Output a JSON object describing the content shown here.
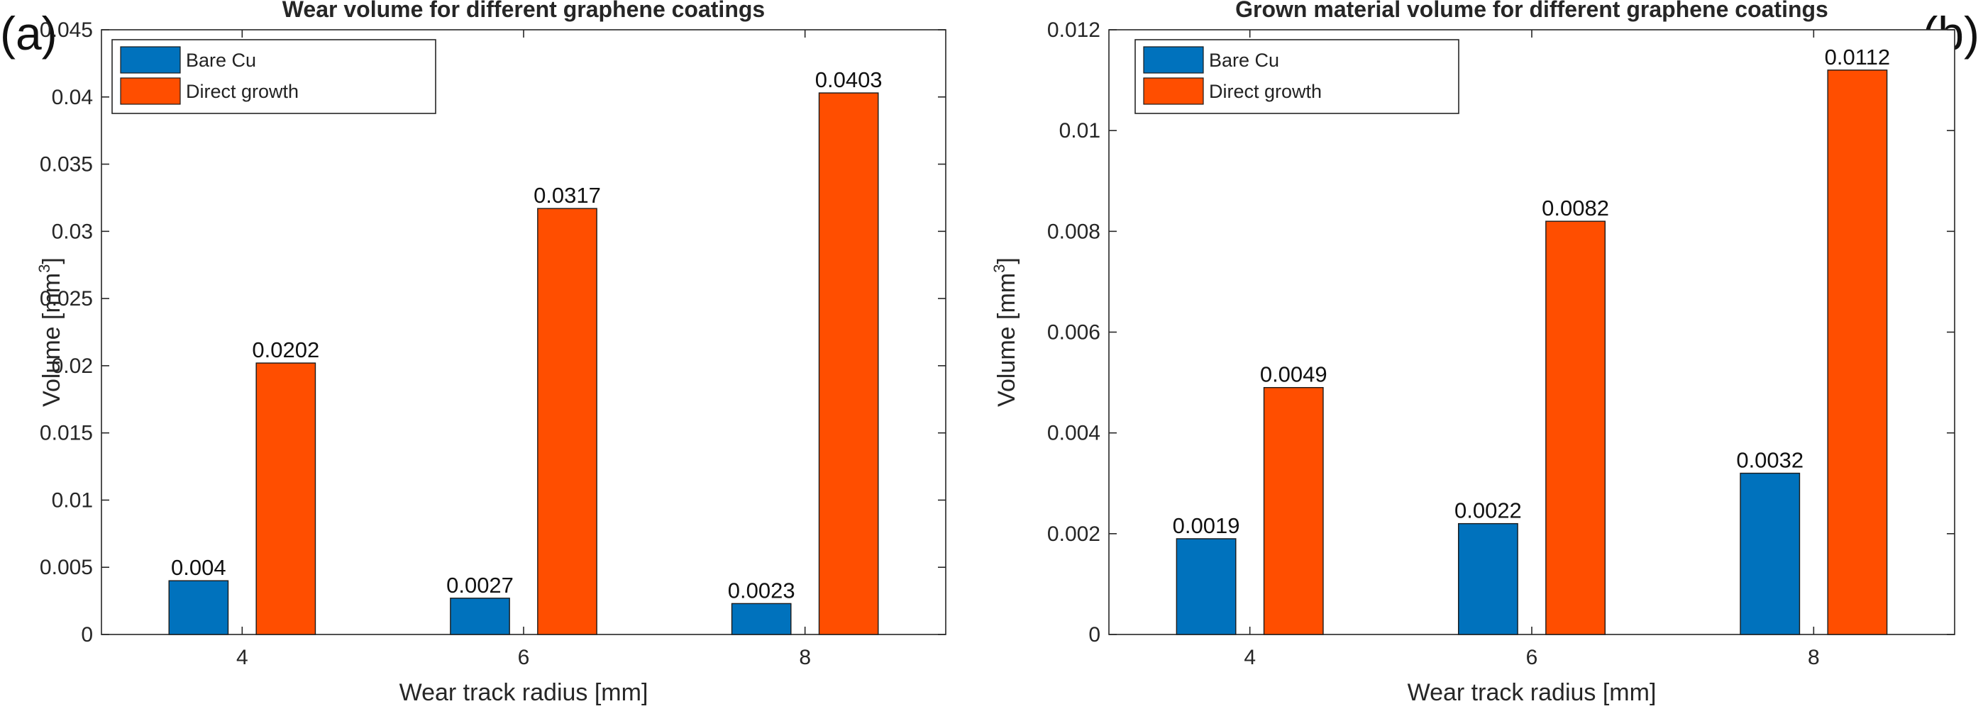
{
  "chart_data": [
    {
      "type": "bar",
      "panel_label": "(a)",
      "title": "Wear volume for different graphene coatings",
      "xlabel": "Wear track radius [mm]",
      "ylabel_main": "Volume [mm",
      "ylabel_sup": "3",
      "ylabel_close": "]",
      "categories": [
        "4",
        "6",
        "8"
      ],
      "ylim": [
        0,
        0.045
      ],
      "yticks": [
        "0",
        "0.005",
        "0.01",
        "0.015",
        "0.02",
        "0.025",
        "0.03",
        "0.035",
        "0.04",
        "0.045"
      ],
      "series": [
        {
          "name": "Bare Cu",
          "color": "#0072BD",
          "values": [
            0.004,
            0.0027,
            0.0023
          ],
          "labels": [
            "0.004",
            "0.0027",
            "0.0023"
          ]
        },
        {
          "name": "Direct growth",
          "color": "#FF4E00",
          "values": [
            0.0202,
            0.0317,
            0.0403
          ],
          "labels": [
            "0.0202",
            "0.0317",
            "0.0403"
          ]
        }
      ],
      "legend_position": "top-left",
      "grid": false
    },
    {
      "type": "bar",
      "panel_label": "(b)",
      "title": "Grown material volume for different graphene coatings",
      "xlabel": "Wear track radius [mm]",
      "ylabel_main": "Volume [mm",
      "ylabel_sup": "3",
      "ylabel_close": "]",
      "categories": [
        "4",
        "6",
        "8"
      ],
      "ylim": [
        0,
        0.012
      ],
      "yticks": [
        "0",
        "0.002",
        "0.004",
        "0.006",
        "0.008",
        "0.01",
        "0.012"
      ],
      "series": [
        {
          "name": "Bare Cu",
          "color": "#0072BD",
          "values": [
            0.0019,
            0.0022,
            0.0032
          ],
          "labels": [
            "0.0019",
            "0.0022",
            "0.0032"
          ]
        },
        {
          "name": "Direct growth",
          "color": "#FF4E00",
          "values": [
            0.0049,
            0.0082,
            0.0112
          ],
          "labels": [
            "0.0049",
            "0.0082",
            "0.0112"
          ]
        }
      ],
      "legend_position": "top-left",
      "grid": false
    }
  ]
}
